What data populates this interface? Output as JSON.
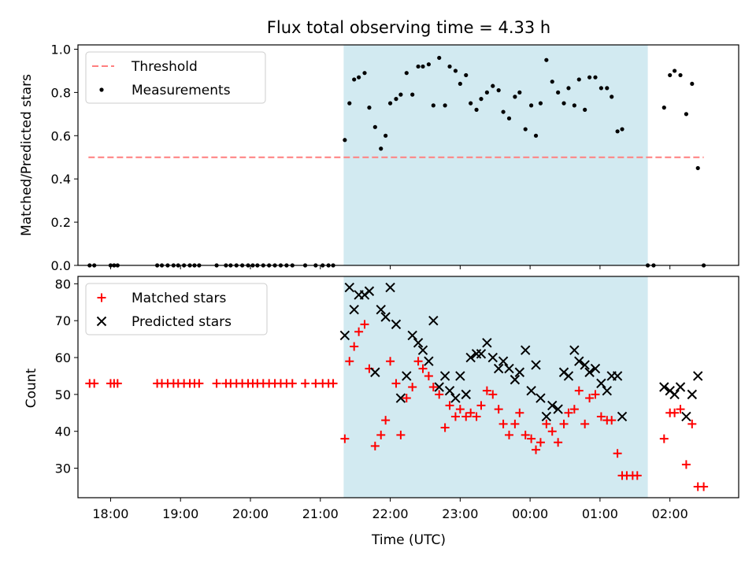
{
  "figure": {
    "title": "Flux total observing time = 4.33 h"
  },
  "colors": {
    "threshold": "#ff7f7f",
    "measurement": "#000000",
    "matched": "#ff0000",
    "predicted": "#000000",
    "shade": "#add8e6"
  },
  "chart_data": [
    {
      "type": "scatter",
      "panel": "top",
      "title": "Flux total observing time = 4.33 h",
      "xlabel": "",
      "ylabel": "Matched/Predicted stars",
      "xlim": [
        "17:32",
        "02:59"
      ],
      "ylim": [
        0,
        1.02
      ],
      "x_ticks": [
        "18:00",
        "19:00",
        "20:00",
        "21:00",
        "22:00",
        "23:00",
        "00:00",
        "01:00",
        "02:00"
      ],
      "y_ticks": [
        "0.0",
        "0.2",
        "0.4",
        "0.6",
        "0.8",
        "1.0"
      ],
      "legend": {
        "position": "upper-left",
        "entries": [
          "Threshold",
          "Measurements"
        ]
      },
      "shaded_span": [
        "21:20",
        "01:41"
      ],
      "threshold": {
        "name": "Threshold",
        "value": 0.5,
        "x_start": "17:41",
        "x_end": "02:29"
      },
      "series": [
        {
          "name": "Measurements",
          "points": [
            [
              "17:42",
              0.0
            ],
            [
              "17:46",
              0.0
            ],
            [
              "18:00",
              0.0
            ],
            [
              "18:03",
              0.0
            ],
            [
              "18:06",
              0.0
            ],
            [
              "18:40",
              0.0
            ],
            [
              "18:44",
              0.0
            ],
            [
              "18:49",
              0.0
            ],
            [
              "18:54",
              0.0
            ],
            [
              "18:58",
              0.0
            ],
            [
              "19:03",
              0.0
            ],
            [
              "19:08",
              0.0
            ],
            [
              "19:12",
              0.0
            ],
            [
              "19:16",
              0.0
            ],
            [
              "19:31",
              0.0
            ],
            [
              "19:39",
              0.0
            ],
            [
              "19:43",
              0.0
            ],
            [
              "19:48",
              0.0
            ],
            [
              "19:53",
              0.0
            ],
            [
              "19:58",
              0.0
            ],
            [
              "20:02",
              0.0
            ],
            [
              "20:06",
              0.0
            ],
            [
              "20:11",
              0.0
            ],
            [
              "20:16",
              0.0
            ],
            [
              "20:21",
              0.0
            ],
            [
              "20:26",
              0.0
            ],
            [
              "20:31",
              0.0
            ],
            [
              "20:36",
              0.0
            ],
            [
              "20:47",
              0.0
            ],
            [
              "20:56",
              0.0
            ],
            [
              "21:02",
              0.0
            ],
            [
              "21:07",
              0.0
            ],
            [
              "21:11",
              0.0
            ],
            [
              "21:21",
              0.58
            ],
            [
              "21:25",
              0.75
            ],
            [
              "21:29",
              0.86
            ],
            [
              "21:33",
              0.87
            ],
            [
              "21:38",
              0.89
            ],
            [
              "21:42",
              0.73
            ],
            [
              "21:47",
              0.64
            ],
            [
              "21:52",
              0.54
            ],
            [
              "21:56",
              0.6
            ],
            [
              "22:00",
              0.75
            ],
            [
              "22:05",
              0.77
            ],
            [
              "22:09",
              0.79
            ],
            [
              "22:14",
              0.89
            ],
            [
              "22:19",
              0.79
            ],
            [
              "22:24",
              0.92
            ],
            [
              "22:28",
              0.92
            ],
            [
              "22:33",
              0.93
            ],
            [
              "22:37",
              0.74
            ],
            [
              "22:42",
              0.96
            ],
            [
              "22:47",
              0.74
            ],
            [
              "22:51",
              0.92
            ],
            [
              "22:56",
              0.9
            ],
            [
              "23:00",
              0.84
            ],
            [
              "23:05",
              0.88
            ],
            [
              "23:09",
              0.75
            ],
            [
              "23:14",
              0.72
            ],
            [
              "23:18",
              0.77
            ],
            [
              "23:23",
              0.8
            ],
            [
              "23:28",
              0.83
            ],
            [
              "23:33",
              0.81
            ],
            [
              "23:37",
              0.71
            ],
            [
              "23:42",
              0.68
            ],
            [
              "23:47",
              0.78
            ],
            [
              "23:51",
              0.8
            ],
            [
              "23:56",
              0.63
            ],
            [
              "00:01",
              0.74
            ],
            [
              "00:05",
              0.6
            ],
            [
              "00:09",
              0.75
            ],
            [
              "00:14",
              0.95
            ],
            [
              "00:19",
              0.85
            ],
            [
              "00:24",
              0.8
            ],
            [
              "00:29",
              0.75
            ],
            [
              "00:33",
              0.82
            ],
            [
              "00:38",
              0.74
            ],
            [
              "00:42",
              0.86
            ],
            [
              "00:47",
              0.72
            ],
            [
              "00:51",
              0.87
            ],
            [
              "00:56",
              0.87
            ],
            [
              "01:01",
              0.82
            ],
            [
              "01:06",
              0.82
            ],
            [
              "01:10",
              0.78
            ],
            [
              "01:15",
              0.62
            ],
            [
              "01:19",
              0.63
            ],
            [
              "01:41",
              0.0
            ],
            [
              "01:46",
              0.0
            ],
            [
              "01:55",
              0.73
            ],
            [
              "02:00",
              0.88
            ],
            [
              "02:04",
              0.9
            ],
            [
              "02:09",
              0.88
            ],
            [
              "02:14",
              0.7
            ],
            [
              "02:19",
              0.84
            ],
            [
              "02:24",
              0.45
            ],
            [
              "02:29",
              0.0
            ]
          ]
        }
      ]
    },
    {
      "type": "scatter",
      "panel": "bottom",
      "title": "",
      "xlabel": "Time (UTC)",
      "ylabel": "Count",
      "xlim": [
        "17:32",
        "02:59"
      ],
      "ylim": [
        22,
        82
      ],
      "x_ticks": [
        "18:00",
        "19:00",
        "20:00",
        "21:00",
        "22:00",
        "23:00",
        "00:00",
        "01:00",
        "02:00"
      ],
      "y_ticks": [
        "30",
        "40",
        "50",
        "60",
        "70",
        "80"
      ],
      "legend": {
        "position": "upper-left",
        "entries": [
          "Matched stars",
          "Predicted stars"
        ]
      },
      "shaded_span": [
        "21:20",
        "01:41"
      ],
      "series": [
        {
          "name": "Matched stars",
          "marker": "plus",
          "points": [
            [
              "17:42",
              53
            ],
            [
              "17:46",
              53
            ],
            [
              "18:00",
              53
            ],
            [
              "18:03",
              53
            ],
            [
              "18:06",
              53
            ],
            [
              "18:40",
              53
            ],
            [
              "18:44",
              53
            ],
            [
              "18:49",
              53
            ],
            [
              "18:54",
              53
            ],
            [
              "18:58",
              53
            ],
            [
              "19:03",
              53
            ],
            [
              "19:08",
              53
            ],
            [
              "19:12",
              53
            ],
            [
              "19:16",
              53
            ],
            [
              "19:31",
              53
            ],
            [
              "19:39",
              53
            ],
            [
              "19:43",
              53
            ],
            [
              "19:48",
              53
            ],
            [
              "19:53",
              53
            ],
            [
              "19:58",
              53
            ],
            [
              "20:02",
              53
            ],
            [
              "20:06",
              53
            ],
            [
              "20:11",
              53
            ],
            [
              "20:16",
              53
            ],
            [
              "20:21",
              53
            ],
            [
              "20:26",
              53
            ],
            [
              "20:31",
              53
            ],
            [
              "20:36",
              53
            ],
            [
              "20:47",
              53
            ],
            [
              "20:56",
              53
            ],
            [
              "21:02",
              53
            ],
            [
              "21:07",
              53
            ],
            [
              "21:11",
              53
            ],
            [
              "21:21",
              38
            ],
            [
              "21:25",
              59
            ],
            [
              "21:29",
              63
            ],
            [
              "21:33",
              67
            ],
            [
              "21:38",
              69
            ],
            [
              "21:42",
              57
            ],
            [
              "21:47",
              36
            ],
            [
              "21:52",
              39
            ],
            [
              "21:56",
              43
            ],
            [
              "22:00",
              59
            ],
            [
              "22:05",
              53
            ],
            [
              "22:09",
              39
            ],
            [
              "22:14",
              49
            ],
            [
              "22:19",
              52
            ],
            [
              "22:24",
              59
            ],
            [
              "22:28",
              57
            ],
            [
              "22:33",
              55
            ],
            [
              "22:37",
              52
            ],
            [
              "22:42",
              50
            ],
            [
              "22:47",
              41
            ],
            [
              "22:51",
              47
            ],
            [
              "22:56",
              44
            ],
            [
              "23:00",
              46
            ],
            [
              "23:05",
              44
            ],
            [
              "23:09",
              45
            ],
            [
              "23:14",
              44
            ],
            [
              "23:18",
              47
            ],
            [
              "23:23",
              51
            ],
            [
              "23:28",
              50
            ],
            [
              "23:33",
              46
            ],
            [
              "23:37",
              42
            ],
            [
              "23:42",
              39
            ],
            [
              "23:47",
              42
            ],
            [
              "23:51",
              45
            ],
            [
              "23:56",
              39
            ],
            [
              "00:01",
              38
            ],
            [
              "00:05",
              35
            ],
            [
              "00:09",
              37
            ],
            [
              "00:14",
              42
            ],
            [
              "00:19",
              40
            ],
            [
              "00:24",
              37
            ],
            [
              "00:29",
              42
            ],
            [
              "00:33",
              45
            ],
            [
              "00:38",
              46
            ],
            [
              "00:42",
              51
            ],
            [
              "00:47",
              42
            ],
            [
              "00:51",
              49
            ],
            [
              "00:56",
              50
            ],
            [
              "01:01",
              44
            ],
            [
              "01:06",
              43
            ],
            [
              "01:10",
              43
            ],
            [
              "01:15",
              34
            ],
            [
              "01:19",
              28
            ],
            [
              "01:23",
              28
            ],
            [
              "01:28",
              28
            ],
            [
              "01:32",
              28
            ],
            [
              "01:55",
              38
            ],
            [
              "02:00",
              45
            ],
            [
              "02:04",
              45
            ],
            [
              "02:09",
              46
            ],
            [
              "02:14",
              31
            ],
            [
              "02:19",
              42
            ],
            [
              "02:24",
              25
            ],
            [
              "02:29",
              25
            ]
          ]
        },
        {
          "name": "Predicted stars",
          "marker": "x",
          "points": [
            [
              "21:21",
              66
            ],
            [
              "21:25",
              79
            ],
            [
              "21:29",
              73
            ],
            [
              "21:33",
              77
            ],
            [
              "21:38",
              77
            ],
            [
              "21:42",
              78
            ],
            [
              "21:47",
              56
            ],
            [
              "21:52",
              73
            ],
            [
              "21:56",
              71
            ],
            [
              "22:00",
              79
            ],
            [
              "22:05",
              69
            ],
            [
              "22:09",
              49
            ],
            [
              "22:14",
              55
            ],
            [
              "22:19",
              66
            ],
            [
              "22:24",
              64
            ],
            [
              "22:28",
              62
            ],
            [
              "22:33",
              59
            ],
            [
              "22:37",
              70
            ],
            [
              "22:42",
              52
            ],
            [
              "22:47",
              55
            ],
            [
              "22:51",
              51
            ],
            [
              "22:56",
              49
            ],
            [
              "23:00",
              55
            ],
            [
              "23:05",
              50
            ],
            [
              "23:09",
              60
            ],
            [
              "23:14",
              61
            ],
            [
              "23:18",
              61
            ],
            [
              "23:23",
              64
            ],
            [
              "23:28",
              60
            ],
            [
              "23:33",
              57
            ],
            [
              "23:37",
              59
            ],
            [
              "23:42",
              57
            ],
            [
              "23:47",
              54
            ],
            [
              "23:51",
              56
            ],
            [
              "23:56",
              62
            ],
            [
              "00:01",
              51
            ],
            [
              "00:05",
              58
            ],
            [
              "00:09",
              49
            ],
            [
              "00:14",
              44
            ],
            [
              "00:19",
              47
            ],
            [
              "00:24",
              46
            ],
            [
              "00:29",
              56
            ],
            [
              "00:33",
              55
            ],
            [
              "00:38",
              62
            ],
            [
              "00:42",
              59
            ],
            [
              "00:47",
              58
            ],
            [
              "00:51",
              56
            ],
            [
              "00:56",
              57
            ],
            [
              "01:01",
              53
            ],
            [
              "01:06",
              51
            ],
            [
              "01:10",
              55
            ],
            [
              "01:15",
              55
            ],
            [
              "01:19",
              44
            ],
            [
              "01:55",
              52
            ],
            [
              "02:00",
              51
            ],
            [
              "02:04",
              50
            ],
            [
              "02:09",
              52
            ],
            [
              "02:14",
              44
            ],
            [
              "02:19",
              50
            ],
            [
              "02:24",
              55
            ]
          ]
        }
      ]
    }
  ]
}
